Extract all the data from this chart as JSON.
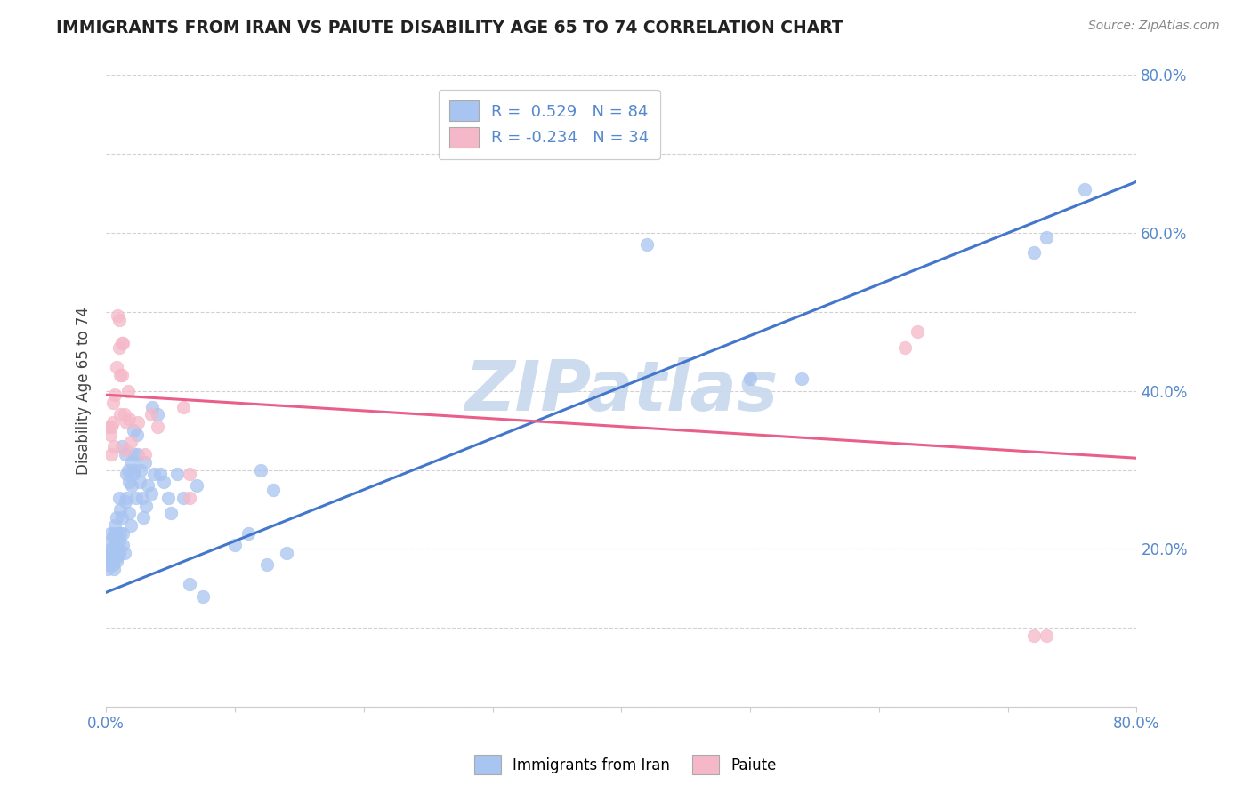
{
  "title": "IMMIGRANTS FROM IRAN VS PAIUTE DISABILITY AGE 65 TO 74 CORRELATION CHART",
  "source": "Source: ZipAtlas.com",
  "ylabel": "Disability Age 65 to 74",
  "xlim": [
    0.0,
    0.8
  ],
  "ylim": [
    0.0,
    0.8
  ],
  "xticks": [
    0.0,
    0.1,
    0.2,
    0.3,
    0.4,
    0.5,
    0.6,
    0.7,
    0.8
  ],
  "yticks": [
    0.0,
    0.1,
    0.2,
    0.3,
    0.4,
    0.5,
    0.6,
    0.7,
    0.8
  ],
  "xticklabels": [
    "0.0%",
    "",
    "",
    "",
    "",
    "",
    "",
    "",
    "80.0%"
  ],
  "yticklabels_right": [
    "",
    "",
    "20.0%",
    "",
    "40.0%",
    "",
    "60.0%",
    "",
    "80.0%"
  ],
  "legend_r1_label": "R =  0.529",
  "legend_r1_n": "N = 84",
  "legend_r2_label": "R = -0.234",
  "legend_r2_n": "N = 34",
  "blue_color": "#a8c4f0",
  "pink_color": "#f5b8c8",
  "line_blue": "#4477cc",
  "line_pink": "#e8608a",
  "tick_color": "#5588cc",
  "watermark_color": "#c8d8ee",
  "blue_scatter": [
    [
      0.001,
      0.175
    ],
    [
      0.002,
      0.195
    ],
    [
      0.002,
      0.18
    ],
    [
      0.003,
      0.22
    ],
    [
      0.003,
      0.19
    ],
    [
      0.003,
      0.21
    ],
    [
      0.004,
      0.2
    ],
    [
      0.004,
      0.185
    ],
    [
      0.004,
      0.195
    ],
    [
      0.005,
      0.215
    ],
    [
      0.005,
      0.2
    ],
    [
      0.005,
      0.195
    ],
    [
      0.005,
      0.18
    ],
    [
      0.006,
      0.22
    ],
    [
      0.006,
      0.19
    ],
    [
      0.006,
      0.215
    ],
    [
      0.006,
      0.175
    ],
    [
      0.007,
      0.23
    ],
    [
      0.007,
      0.205
    ],
    [
      0.007,
      0.195
    ],
    [
      0.008,
      0.24
    ],
    [
      0.008,
      0.2
    ],
    [
      0.008,
      0.185
    ],
    [
      0.009,
      0.22
    ],
    [
      0.009,
      0.19
    ],
    [
      0.01,
      0.265
    ],
    [
      0.01,
      0.21
    ],
    [
      0.01,
      0.195
    ],
    [
      0.011,
      0.25
    ],
    [
      0.011,
      0.22
    ],
    [
      0.012,
      0.33
    ],
    [
      0.012,
      0.24
    ],
    [
      0.013,
      0.22
    ],
    [
      0.013,
      0.205
    ],
    [
      0.014,
      0.195
    ],
    [
      0.015,
      0.32
    ],
    [
      0.015,
      0.26
    ],
    [
      0.016,
      0.295
    ],
    [
      0.016,
      0.265
    ],
    [
      0.017,
      0.3
    ],
    [
      0.018,
      0.285
    ],
    [
      0.018,
      0.245
    ],
    [
      0.019,
      0.23
    ],
    [
      0.02,
      0.31
    ],
    [
      0.02,
      0.28
    ],
    [
      0.021,
      0.35
    ],
    [
      0.021,
      0.295
    ],
    [
      0.022,
      0.32
    ],
    [
      0.022,
      0.3
    ],
    [
      0.023,
      0.265
    ],
    [
      0.024,
      0.345
    ],
    [
      0.025,
      0.32
    ],
    [
      0.026,
      0.285
    ],
    [
      0.027,
      0.3
    ],
    [
      0.028,
      0.265
    ],
    [
      0.029,
      0.24
    ],
    [
      0.03,
      0.31
    ],
    [
      0.031,
      0.255
    ],
    [
      0.032,
      0.28
    ],
    [
      0.035,
      0.27
    ],
    [
      0.036,
      0.38
    ],
    [
      0.037,
      0.295
    ],
    [
      0.04,
      0.37
    ],
    [
      0.042,
      0.295
    ],
    [
      0.045,
      0.285
    ],
    [
      0.048,
      0.265
    ],
    [
      0.05,
      0.245
    ],
    [
      0.055,
      0.295
    ],
    [
      0.06,
      0.265
    ],
    [
      0.065,
      0.155
    ],
    [
      0.07,
      0.28
    ],
    [
      0.075,
      0.14
    ],
    [
      0.1,
      0.205
    ],
    [
      0.11,
      0.22
    ],
    [
      0.12,
      0.3
    ],
    [
      0.125,
      0.18
    ],
    [
      0.13,
      0.275
    ],
    [
      0.14,
      0.195
    ],
    [
      0.42,
      0.585
    ],
    [
      0.5,
      0.415
    ],
    [
      0.54,
      0.415
    ],
    [
      0.72,
      0.575
    ],
    [
      0.73,
      0.595
    ],
    [
      0.76,
      0.655
    ]
  ],
  "pink_scatter": [
    [
      0.001,
      0.355
    ],
    [
      0.003,
      0.345
    ],
    [
      0.004,
      0.32
    ],
    [
      0.004,
      0.355
    ],
    [
      0.005,
      0.385
    ],
    [
      0.005,
      0.36
    ],
    [
      0.006,
      0.33
    ],
    [
      0.007,
      0.395
    ],
    [
      0.008,
      0.43
    ],
    [
      0.009,
      0.495
    ],
    [
      0.01,
      0.49
    ],
    [
      0.01,
      0.455
    ],
    [
      0.011,
      0.42
    ],
    [
      0.011,
      0.37
    ],
    [
      0.012,
      0.46
    ],
    [
      0.012,
      0.42
    ],
    [
      0.013,
      0.46
    ],
    [
      0.014,
      0.37
    ],
    [
      0.015,
      0.325
    ],
    [
      0.016,
      0.36
    ],
    [
      0.017,
      0.4
    ],
    [
      0.018,
      0.365
    ],
    [
      0.019,
      0.335
    ],
    [
      0.025,
      0.36
    ],
    [
      0.03,
      0.32
    ],
    [
      0.035,
      0.37
    ],
    [
      0.04,
      0.355
    ],
    [
      0.06,
      0.38
    ],
    [
      0.065,
      0.295
    ],
    [
      0.065,
      0.265
    ],
    [
      0.62,
      0.455
    ],
    [
      0.63,
      0.475
    ],
    [
      0.72,
      0.09
    ],
    [
      0.73,
      0.09
    ]
  ],
  "blue_line_x": [
    0.0,
    0.8
  ],
  "blue_line_y": [
    0.145,
    0.665
  ],
  "pink_line_x": [
    0.0,
    0.8
  ],
  "pink_line_y": [
    0.395,
    0.315
  ]
}
